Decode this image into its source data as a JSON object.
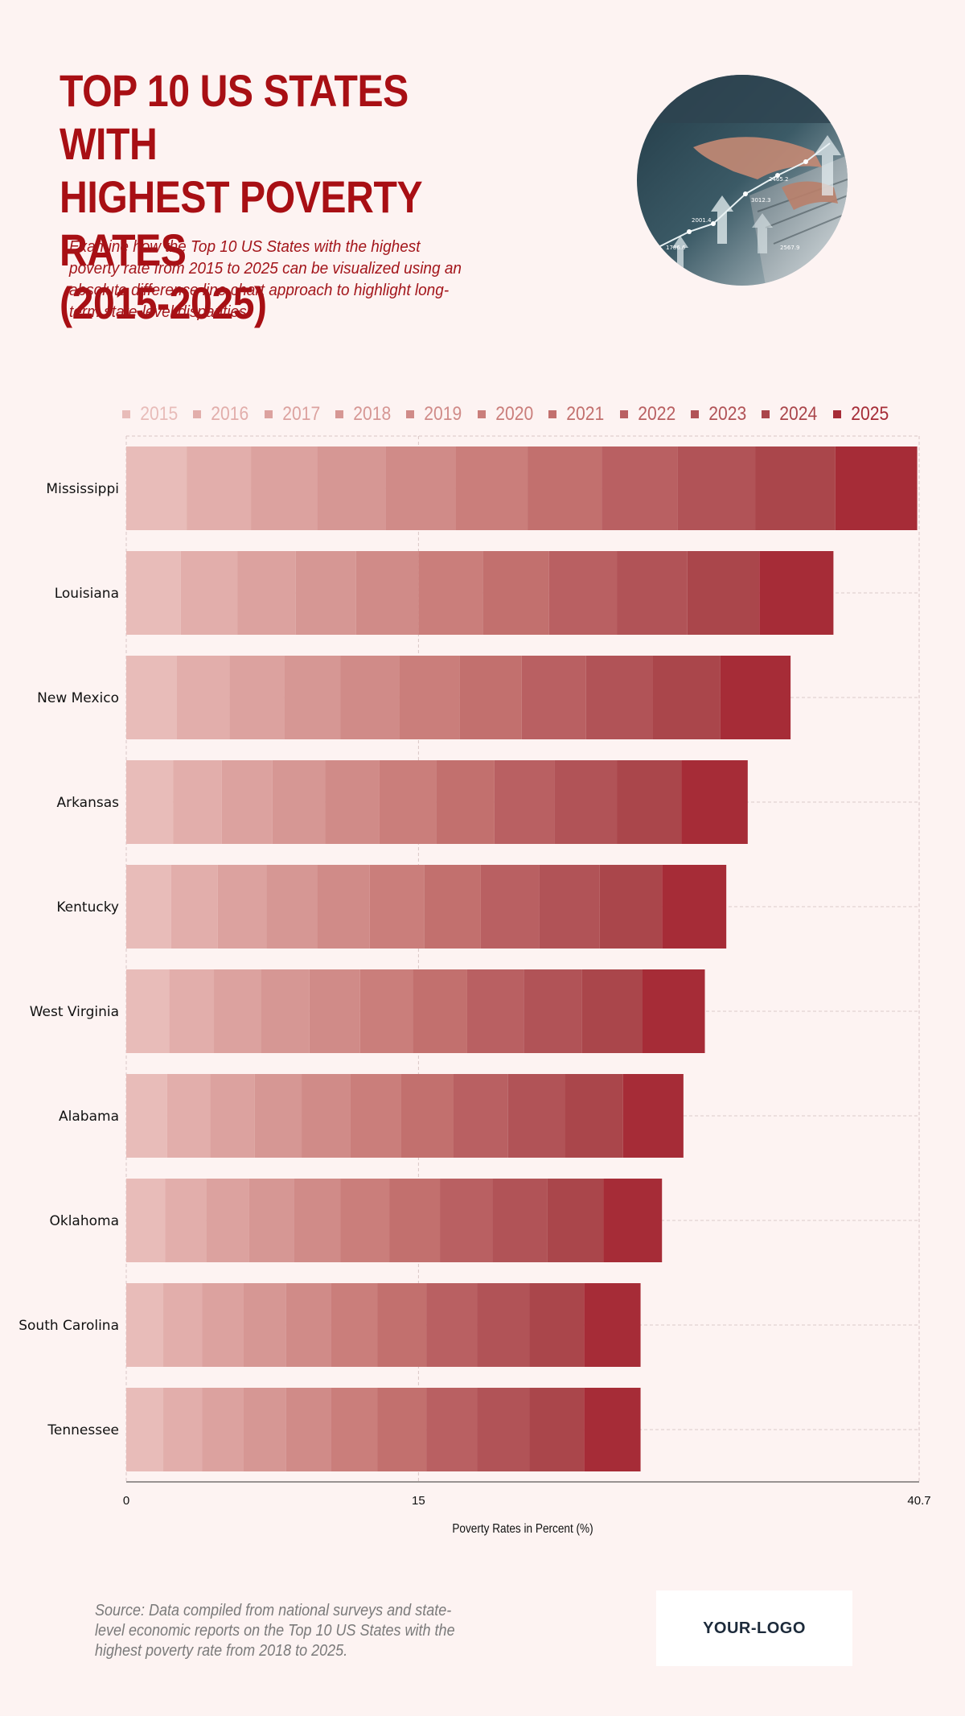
{
  "header": {
    "title_lines": [
      "TOP 10 US STATES WITH",
      "HIGHEST POVERTY RATES",
      "(2015-2025)"
    ],
    "subtitle": "Examine how the Top 10 US States with the highest poverty rate from 2015 to 2025 can be visualized using an absolute difference line chart approach to highlight long-term state-level disparities."
  },
  "photo": {
    "icon": "stock-chart-laptop-photo",
    "chart_labels": [
      "2465.2",
      "3012.3",
      "2001.4",
      "1786.6",
      "2567.9"
    ]
  },
  "chart_data": {
    "type": "bar",
    "stacked": true,
    "orientation": "horizontal",
    "categories": [
      "Mississippi",
      "Louisiana",
      "New Mexico",
      "Arkansas",
      "Kentucky",
      "West Virginia",
      "Alabama",
      "Oklahoma",
      "South Carolina",
      "Tennessee"
    ],
    "series": [
      {
        "name": "2015",
        "color": "#e8bcb9",
        "values": [
          3.1,
          2.8,
          2.6,
          2.4,
          2.3,
          2.2,
          2.1,
          2.0,
          1.9,
          1.9
        ]
      },
      {
        "name": "2016",
        "color": "#e2aeab",
        "values": [
          3.3,
          2.9,
          2.7,
          2.5,
          2.4,
          2.3,
          2.2,
          2.1,
          2.0,
          2.0
        ]
      },
      {
        "name": "2017",
        "color": "#dca29f",
        "values": [
          3.4,
          3.0,
          2.8,
          2.6,
          2.5,
          2.4,
          2.3,
          2.2,
          2.1,
          2.1
        ]
      },
      {
        "name": "2018",
        "color": "#d69794",
        "values": [
          3.5,
          3.1,
          2.9,
          2.7,
          2.6,
          2.5,
          2.4,
          2.3,
          2.2,
          2.2
        ]
      },
      {
        "name": "2019",
        "color": "#d08b88",
        "values": [
          3.6,
          3.2,
          3.0,
          2.8,
          2.7,
          2.6,
          2.5,
          2.4,
          2.3,
          2.3
        ]
      },
      {
        "name": "2020",
        "color": "#ca7e7b",
        "values": [
          3.7,
          3.3,
          3.1,
          2.9,
          2.8,
          2.7,
          2.6,
          2.5,
          2.4,
          2.4
        ]
      },
      {
        "name": "2021",
        "color": "#c2706e",
        "values": [
          3.8,
          3.4,
          3.2,
          3.0,
          2.9,
          2.8,
          2.7,
          2.6,
          2.5,
          2.5
        ]
      },
      {
        "name": "2022",
        "color": "#b96062",
        "values": [
          3.9,
          3.5,
          3.3,
          3.1,
          3.0,
          2.9,
          2.8,
          2.7,
          2.6,
          2.6
        ]
      },
      {
        "name": "2023",
        "color": "#b15357",
        "values": [
          4.0,
          3.6,
          3.4,
          3.2,
          3.1,
          3.0,
          2.9,
          2.8,
          2.7,
          2.7
        ]
      },
      {
        "name": "2024",
        "color": "#aa464b",
        "values": [
          4.1,
          3.7,
          3.5,
          3.3,
          3.2,
          3.1,
          3.0,
          2.9,
          2.8,
          2.8
        ]
      },
      {
        "name": "2025",
        "color": "#a62c37",
        "values": [
          4.2,
          3.8,
          3.6,
          3.4,
          3.3,
          3.2,
          3.1,
          3.0,
          2.9,
          2.9
        ]
      }
    ],
    "xlim": [
      0,
      40.7
    ],
    "x_ticks": [
      "0",
      "15",
      "40.7"
    ],
    "xlabel": "Poverty Rates in Percent (%)",
    "ylabel": "",
    "grid": true,
    "legend_position": "top"
  },
  "footer": {
    "source": "Source: Data compiled from national surveys and state-level economic reports on the Top 10 US States with the highest poverty rate from 2018 to 2025.",
    "logo_text": "YOUR-LOGO"
  }
}
